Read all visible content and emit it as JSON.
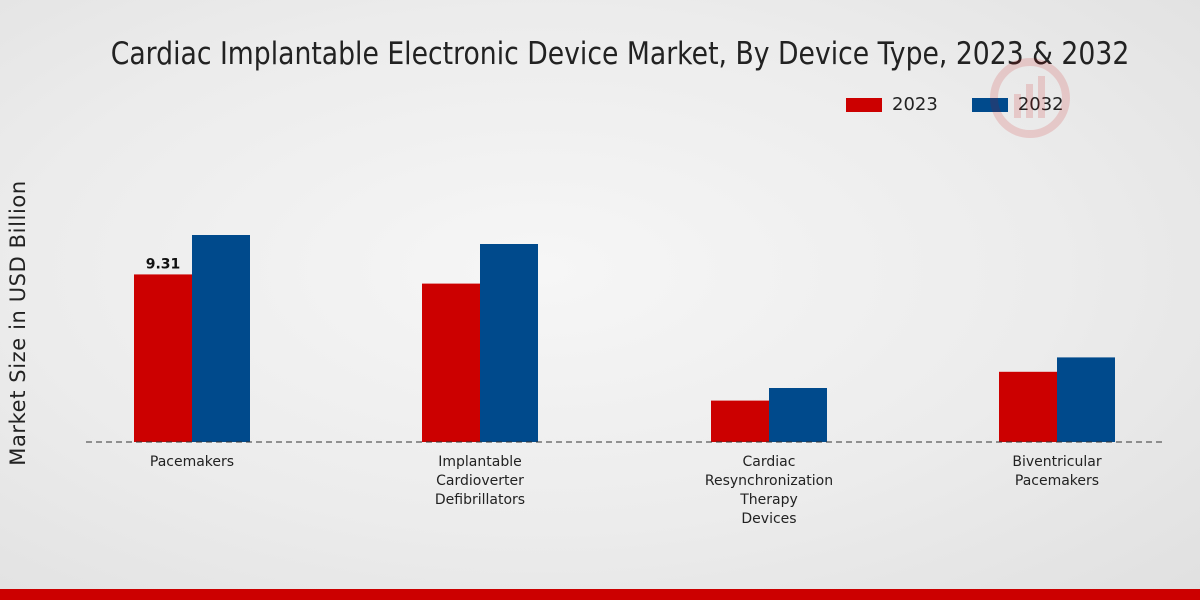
{
  "chart_data": {
    "type": "bar",
    "title": "Cardiac Implantable Electronic Device Market, By Device Type, 2023 & 2032",
    "ylabel": "Market Size in USD Billion",
    "xlabel": "",
    "categories": [
      [
        "Pacemakers"
      ],
      [
        "Implantable",
        "Cardioverter",
        "Defibrillators"
      ],
      [
        "Cardiac",
        "Resynchronization",
        "Therapy",
        "Devices"
      ],
      [
        "Biventricular",
        "Pacemakers"
      ]
    ],
    "series": [
      {
        "name": "2023",
        "color": "#cc0000",
        "values": [
          9.31,
          8.8,
          2.3,
          3.9
        ]
      },
      {
        "name": "2032",
        "color": "#004a8c",
        "values": [
          11.5,
          11.0,
          3.0,
          4.7
        ]
      }
    ],
    "data_labels": [
      {
        "series": 0,
        "category": 0,
        "text": "9.31"
      }
    ],
    "ylim": [
      0,
      24
    ],
    "legend_position": "top-right",
    "grid": false
  }
}
